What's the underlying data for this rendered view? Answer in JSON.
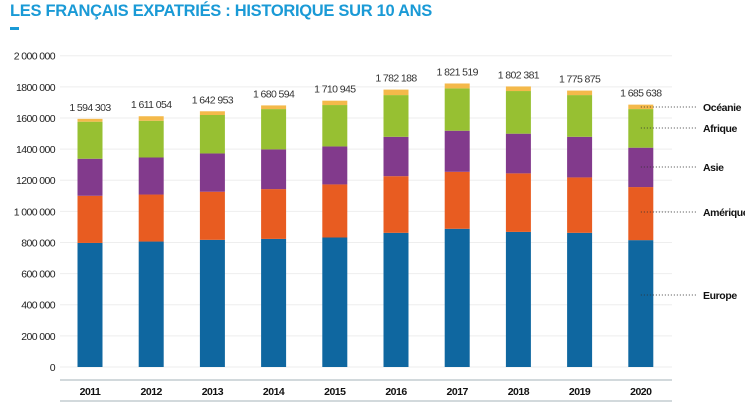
{
  "chart_data": {
    "type": "bar",
    "stacked": true,
    "title": "LES FRANÇAIS EXPATRIÉS : HISTORIQUE SUR 10 ANS",
    "xlabel": "",
    "ylabel": "",
    "ylim": [
      0,
      2000000
    ],
    "yticks": [
      0,
      200000,
      400000,
      600000,
      800000,
      1000000,
      1200000,
      1400000,
      1600000,
      1800000,
      2000000
    ],
    "ytick_labels": [
      "0",
      "200 000",
      "400 000",
      "600 000",
      "800 000",
      "1 000 000",
      "1200 000",
      "1400 000",
      "1600 000",
      "1800 000",
      "2 000 000"
    ],
    "grid": true,
    "legend_placement": "right",
    "categories": [
      "2011",
      "2012",
      "2013",
      "2014",
      "2015",
      "2016",
      "2017",
      "2018",
      "2019",
      "2020"
    ],
    "totals": [
      1594303,
      1611054,
      1642953,
      1680594,
      1710945,
      1782188,
      1821519,
      1802381,
      1775875,
      1685638
    ],
    "total_labels": [
      "1 594 303",
      "1 611 054",
      "1 642 953",
      "1 680 594",
      "1 710 945",
      "1 782 188",
      "1 821 519",
      "1 802 381",
      "1 775 875",
      "1 685 638"
    ],
    "series": [
      {
        "name": "Europe",
        "color": "#0f67a0",
        "values": [
          797000,
          806000,
          817000,
          823000,
          832000,
          862000,
          888000,
          868000,
          862000,
          815000
        ]
      },
      {
        "name": "Amérique",
        "color": "#e85c21",
        "values": [
          303000,
          302000,
          309000,
          320000,
          341000,
          364000,
          366000,
          376000,
          356000,
          341000
        ]
      },
      {
        "name": "Asie",
        "color": "#823a8c",
        "values": [
          238000,
          238000,
          246000,
          255000,
          244000,
          253000,
          264000,
          255000,
          261000,
          253000
        ]
      },
      {
        "name": "Afrique",
        "color": "#97c032",
        "values": [
          238000,
          236000,
          247000,
          259000,
          266000,
          268000,
          272000,
          274000,
          268000,
          248000
        ]
      },
      {
        "name": "Océanie",
        "color": "#f4b94a",
        "values": [
          18303,
          29054,
          23953,
          23594,
          27945,
          35188,
          31519,
          29381,
          28875,
          28638
        ]
      }
    ]
  }
}
